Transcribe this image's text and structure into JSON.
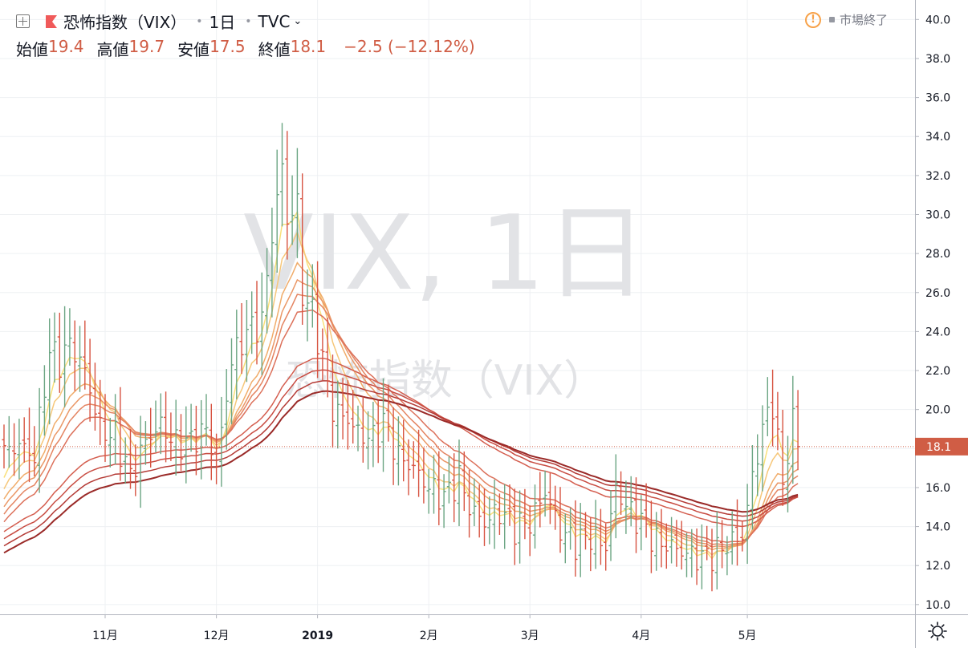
{
  "header": {
    "symbol_name": "恐怖指数（VIX）",
    "interval": "1日",
    "exchange": "TVC",
    "open_label": "始値",
    "open_value": "19.4",
    "high_label": "高値",
    "high_value": "19.7",
    "low_label": "安値",
    "low_value": "17.5",
    "close_label": "終値",
    "close_value": "18.1",
    "change": "−2.5 (−12.12%)",
    "market_status": "市場終了",
    "alert_glyph": "!"
  },
  "watermark": {
    "line1": "VIX, 1日",
    "line2": "恐怖指数（VIX）"
  },
  "colors": {
    "up": "#6ba583",
    "down": "#d75442",
    "price_label_bg": "#d05d45",
    "gridline": "#eef0f3"
  },
  "icons": [
    "plus-icon",
    "flag-icon",
    "chevron-down-icon",
    "alert-icon",
    "gear-icon"
  ],
  "chart_data": {
    "type": "ohlc_bar",
    "symbol": "VIX",
    "ylim": [
      9.5,
      41
    ],
    "yticks": [
      "40.0",
      "38.0",
      "36.0",
      "34.0",
      "32.0",
      "30.0",
      "28.0",
      "26.0",
      "24.0",
      "22.0",
      "20.0",
      "18.0",
      "16.0",
      "14.0",
      "12.0",
      "10.0"
    ],
    "xticks": [
      {
        "label": "11月",
        "index": 20
      },
      {
        "label": "12月",
        "index": 42
      },
      {
        "label": "2019",
        "index": 62
      },
      {
        "label": "2月",
        "index": 84
      },
      {
        "label": "3月",
        "index": 104
      },
      {
        "label": "4月",
        "index": 126
      },
      {
        "label": "5月",
        "index": 147
      }
    ],
    "last_price": "18.1",
    "anchors": [
      [
        0,
        17.8
      ],
      [
        3,
        18.2
      ],
      [
        6,
        17.6
      ],
      [
        9,
        23.0
      ],
      [
        11,
        22.5
      ],
      [
        13,
        23.4
      ],
      [
        16,
        22.0
      ],
      [
        19,
        19.0
      ],
      [
        22,
        18.6
      ],
      [
        25,
        16.6
      ],
      [
        28,
        18.4
      ],
      [
        31,
        19.2
      ],
      [
        34,
        18.2
      ],
      [
        37,
        18.4
      ],
      [
        40,
        19.0
      ],
      [
        42,
        17.0
      ],
      [
        45,
        22.5
      ],
      [
        48,
        24.0
      ],
      [
        51,
        24.5
      ],
      [
        53,
        29.0
      ],
      [
        55,
        32.5
      ],
      [
        56,
        29.7
      ],
      [
        58,
        30.5
      ],
      [
        59,
        25.9
      ],
      [
        61,
        25.0
      ],
      [
        63,
        22.5
      ],
      [
        65,
        20.0
      ],
      [
        68,
        19.5
      ],
      [
        70,
        18.8
      ],
      [
        73,
        18.5
      ],
      [
        75,
        19.4
      ],
      [
        78,
        17.6
      ],
      [
        81,
        17.0
      ],
      [
        84,
        16.0
      ],
      [
        87,
        15.5
      ],
      [
        90,
        16.5
      ],
      [
        92,
        15.0
      ],
      [
        95,
        14.2
      ],
      [
        98,
        14.8
      ],
      [
        101,
        14.0
      ],
      [
        104,
        14.2
      ],
      [
        107,
        15.8
      ],
      [
        110,
        13.8
      ],
      [
        113,
        13.2
      ],
      [
        116,
        13.5
      ],
      [
        119,
        13.0
      ],
      [
        121,
        16.0
      ],
      [
        123,
        15.0
      ],
      [
        126,
        14.2
      ],
      [
        129,
        13.2
      ],
      [
        132,
        13.0
      ],
      [
        135,
        12.6
      ],
      [
        138,
        12.4
      ],
      [
        141,
        12.7
      ],
      [
        143,
        13.1
      ],
      [
        146,
        13.5
      ],
      [
        148,
        16.5
      ],
      [
        150,
        19.0
      ],
      [
        152,
        20.4
      ],
      [
        154,
        16.2
      ],
      [
        156,
        19.4
      ],
      [
        157,
        18.1
      ]
    ],
    "ema_periods": [
      3,
      5,
      8,
      10,
      12,
      15,
      30,
      35,
      40,
      45
    ]
  }
}
